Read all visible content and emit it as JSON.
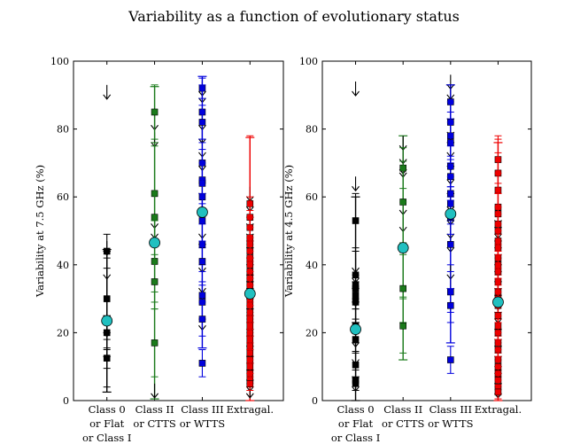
{
  "figure_title": "Variability as a function of evolutionary status",
  "colors": {
    "class0": "#000000",
    "class2": "#1a7a1a",
    "class3": "#0000dd",
    "extragal": "#ee0000",
    "mean": "#20c0c0"
  },
  "chart_data": [
    {
      "type": "scatter",
      "ylabel": "Variability at 7.5 GHz (%)",
      "ylim": [
        0,
        100
      ],
      "yticks": [
        0,
        20,
        40,
        60,
        80,
        100
      ],
      "categories": [
        "Class 0\nor Flat\nor Class I",
        "Class II\nor CTTS",
        "Class III\nor WTTS",
        "Extragal."
      ],
      "series": [
        {
          "name": "Class 0 or Flat or Class I",
          "color": "#000000",
          "points": [
            {
              "y": 44,
              "err": 5
            },
            {
              "y": 30,
              "err": 12
            },
            {
              "y": 24,
              "err": 20
            },
            {
              "y": 20,
              "err": 5
            },
            {
              "y": 12.5,
              "err": 3
            }
          ],
          "upper_limits": [
            93,
            47,
            40,
            28,
            23,
            16
          ],
          "mean": 23.5,
          "mean_err": 21
        },
        {
          "name": "Class II or CTTS",
          "color": "#1a7a1a",
          "points": [
            {
              "y": 85,
              "err": 8
            },
            {
              "y": 61,
              "err": 14
            },
            {
              "y": 54,
              "err": 22
            },
            {
              "y": 41,
              "err": 12
            },
            {
              "y": 35,
              "err": 8
            },
            {
              "y": 17,
              "err": 10
            }
          ],
          "upper_limits": [
            84,
            79,
            55,
            52,
            5
          ],
          "mean": 46.5,
          "mean_err": 46
        },
        {
          "name": "Class III or WTTS",
          "color": "#0000dd",
          "points": [
            {
              "y": 92,
              "err": 3
            },
            {
              "y": 85,
              "err": 8
            },
            {
              "y": 82,
              "err": 5
            },
            {
              "y": 70,
              "err": 6
            },
            {
              "y": 65,
              "err": 9
            },
            {
              "y": 64,
              "err": 6
            },
            {
              "y": 60,
              "err": 5
            },
            {
              "y": 53,
              "err": 8
            },
            {
              "y": 46,
              "err": 6
            },
            {
              "y": 41,
              "err": 6
            },
            {
              "y": 31,
              "err": 7
            },
            {
              "y": 29,
              "err": 5
            },
            {
              "y": 24,
              "err": 5
            },
            {
              "y": 11,
              "err": 4
            }
          ],
          "upper_limits": [
            94,
            92,
            84,
            80,
            76,
            72,
            64,
            58,
            52,
            49,
            42,
            36,
            25
          ],
          "mean": 55.5,
          "mean_err": 40
        },
        {
          "name": "Extragal.",
          "color": "#ee0000",
          "points": [
            {
              "y": 58,
              "err": 20
            },
            {
              "y": 54,
              "err": 6
            },
            {
              "y": 51,
              "err": 5
            },
            {
              "y": 48,
              "err": 6
            },
            {
              "y": 46,
              "err": 5
            },
            {
              "y": 44,
              "err": 4
            },
            {
              "y": 42,
              "err": 5
            },
            {
              "y": 40,
              "err": 4
            },
            {
              "y": 38,
              "err": 4
            },
            {
              "y": 36,
              "err": 5
            },
            {
              "y": 34,
              "err": 4
            },
            {
              "y": 32,
              "err": 4
            },
            {
              "y": 30,
              "err": 4
            },
            {
              "y": 28,
              "err": 4
            },
            {
              "y": 26,
              "err": 3
            },
            {
              "y": 24,
              "err": 4
            },
            {
              "y": 22,
              "err": 3
            },
            {
              "y": 20,
              "err": 3
            },
            {
              "y": 18,
              "err": 3
            },
            {
              "y": 16,
              "err": 3
            },
            {
              "y": 14,
              "err": 3
            },
            {
              "y": 12,
              "err": 3
            },
            {
              "y": 10,
              "err": 2
            },
            {
              "y": 8,
              "err": 3
            },
            {
              "y": 6,
              "err": 2
            },
            {
              "y": 5,
              "err": 2
            }
          ],
          "upper_limits": [
            63,
            60,
            57,
            55,
            52,
            50,
            48,
            45,
            43,
            40,
            38,
            36,
            33,
            30,
            28,
            26,
            24,
            22,
            19,
            16,
            14,
            12,
            9,
            7,
            5
          ],
          "mean": 31.5,
          "mean_err": 46
        }
      ]
    },
    {
      "type": "scatter",
      "ylabel": "Variability at 4.5 GHz (%)",
      "ylim": [
        0,
        100
      ],
      "yticks": [
        0,
        20,
        40,
        60,
        80,
        100
      ],
      "categories": [
        "Class 0\nor Flat\nor Class I",
        "Class II\nor CTTS",
        "Class III\nor WTTS",
        "Extragal."
      ],
      "series": [
        {
          "name": "Class 0 or Flat or Class I",
          "color": "#000000",
          "points": [
            {
              "y": 53,
              "err": 8
            },
            {
              "y": 37,
              "err": 7
            },
            {
              "y": 34,
              "err": 10
            },
            {
              "y": 33,
              "err": 4
            },
            {
              "y": 31,
              "err": 4
            },
            {
              "y": 29,
              "err": 6
            },
            {
              "y": 22,
              "err": 5
            },
            {
              "y": 18,
              "err": 4
            },
            {
              "y": 10.5,
              "err": 4
            },
            {
              "y": 6,
              "err": 3
            },
            {
              "y": 5,
              "err": 2
            }
          ],
          "upper_limits": [
            94,
            66,
            42,
            39,
            36,
            32,
            26,
            20,
            15,
            10,
            7
          ],
          "mean": 21,
          "mean_err": 39
        },
        {
          "name": "Class II or CTTS",
          "color": "#1a7a1a",
          "points": [
            {
              "y": 68.5,
              "err": 6
            },
            {
              "y": 58.5,
              "err": 12
            },
            {
              "y": 44.5,
              "err": 14
            },
            {
              "y": 33,
              "err": 10
            },
            {
              "y": 22,
              "err": 8
            }
          ],
          "upper_limits": [
            78,
            74,
            71,
            70,
            59,
            54
          ],
          "mean": 45,
          "mean_err": 33
        },
        {
          "name": "Class III or WTTS",
          "color": "#0000dd",
          "points": [
            {
              "y": 88,
              "err": 5
            },
            {
              "y": 82,
              "err": 6
            },
            {
              "y": 78,
              "err": 7
            },
            {
              "y": 76,
              "err": 6
            },
            {
              "y": 69,
              "err": 6
            },
            {
              "y": 66,
              "err": 6
            },
            {
              "y": 61,
              "err": 5
            },
            {
              "y": 58,
              "err": 5
            },
            {
              "y": 54,
              "err": 5
            },
            {
              "y": 46,
              "err": 6
            },
            {
              "y": 32,
              "err": 6
            },
            {
              "y": 28,
              "err": 5
            },
            {
              "y": 12,
              "err": 4
            }
          ],
          "upper_limits": [
            96,
            93,
            86,
            82,
            79,
            76,
            72,
            68,
            64,
            60,
            56,
            52,
            48,
            40,
            36
          ],
          "mean": 55,
          "mean_err": 38
        },
        {
          "name": "Extragal.",
          "color": "#ee0000",
          "points": [
            {
              "y": 71,
              "err": 7
            },
            {
              "y": 67,
              "err": 6
            },
            {
              "y": 62,
              "err": 5
            },
            {
              "y": 57,
              "err": 20
            },
            {
              "y": 55,
              "err": 6
            },
            {
              "y": 52,
              "err": 5
            },
            {
              "y": 50,
              "err": 5
            },
            {
              "y": 47,
              "err": 5
            },
            {
              "y": 45,
              "err": 5
            },
            {
              "y": 42,
              "err": 4
            },
            {
              "y": 40,
              "err": 4
            },
            {
              "y": 38,
              "err": 5
            },
            {
              "y": 35,
              "err": 4
            },
            {
              "y": 32,
              "err": 4
            },
            {
              "y": 30,
              "err": 4
            },
            {
              "y": 28,
              "err": 4
            },
            {
              "y": 25,
              "err": 4
            },
            {
              "y": 22,
              "err": 3
            },
            {
              "y": 20,
              "err": 3
            },
            {
              "y": 17,
              "err": 3
            },
            {
              "y": 15,
              "err": 3
            },
            {
              "y": 12,
              "err": 3
            },
            {
              "y": 10,
              "err": 3
            },
            {
              "y": 8,
              "err": 2
            },
            {
              "y": 6,
              "err": 2
            },
            {
              "y": 4,
              "err": 2
            },
            {
              "y": 2.5,
              "err": 2
            }
          ],
          "upper_limits": [
            56,
            54,
            52,
            50,
            48,
            46,
            43,
            41,
            38,
            36,
            34,
            31,
            29,
            27,
            24,
            21,
            19,
            16,
            13,
            11,
            8,
            5
          ],
          "mean": 29,
          "mean_err": 47
        }
      ]
    }
  ]
}
